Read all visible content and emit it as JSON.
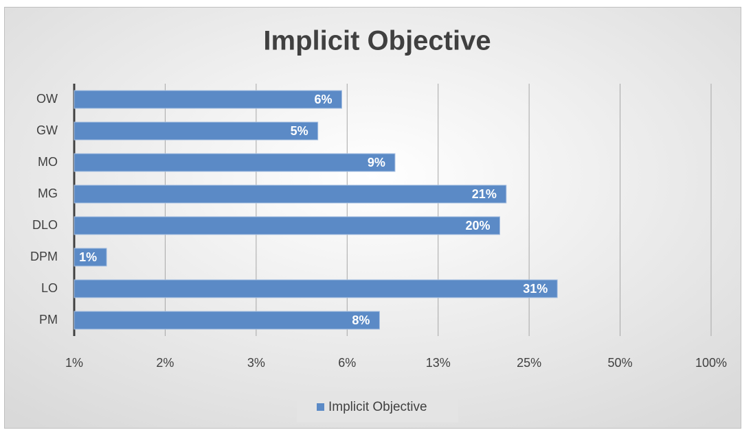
{
  "chart_data": {
    "type": "hbar",
    "title": "Implicit Objective",
    "categories": [
      "OW",
      "GW",
      "MO",
      "MG",
      "DLO",
      "DPM",
      "LO",
      "PM"
    ],
    "series": [
      {
        "name": "Implicit Objective",
        "color": "#5b8ac6",
        "values": [
          6,
          5,
          9,
          21,
          20,
          1,
          31,
          8
        ],
        "value_labels": [
          "6%",
          "5%",
          "9%",
          "21%",
          "20%",
          "1%",
          "31%",
          "8%"
        ]
      }
    ],
    "xscale": "log",
    "xlim": [
      0.78125,
      100
    ],
    "xticks": [
      {
        "value": 0.78125,
        "label": "1%"
      },
      {
        "value": 1.5625,
        "label": "2%"
      },
      {
        "value": 3.125,
        "label": "3%"
      },
      {
        "value": 6.25,
        "label": "6%"
      },
      {
        "value": 12.5,
        "label": "13%"
      },
      {
        "value": 25,
        "label": "25%"
      },
      {
        "value": 50,
        "label": "50%"
      },
      {
        "value": 100,
        "label": "100%"
      }
    ],
    "grid": true,
    "legend": "bottom"
  }
}
